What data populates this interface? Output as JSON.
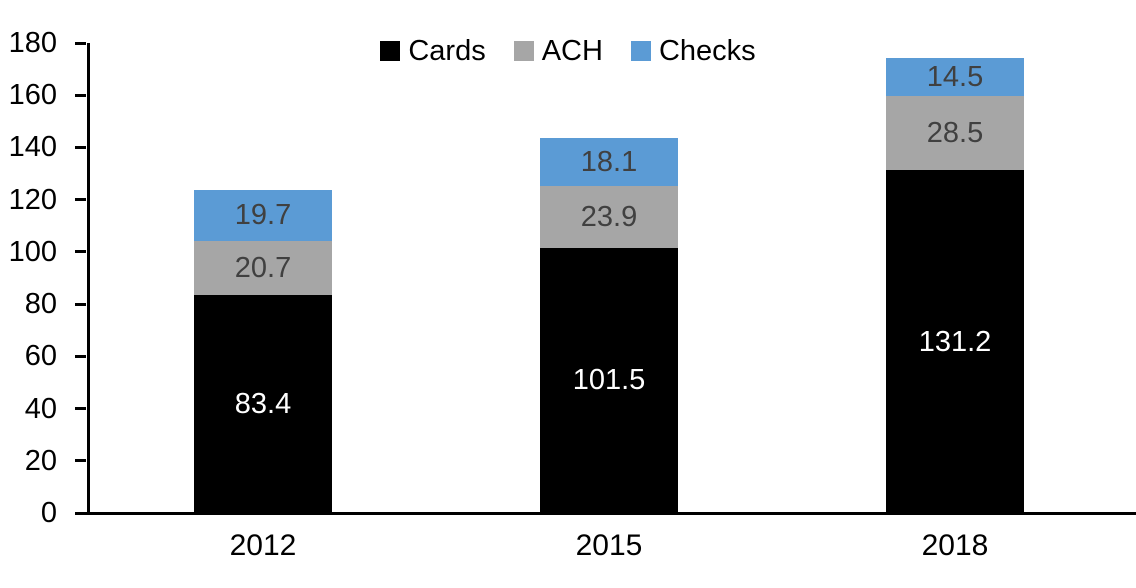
{
  "chart_data": {
    "type": "bar",
    "stacked": true,
    "title": "",
    "xlabel": "",
    "ylabel": "",
    "categories": [
      "2012",
      "2015",
      "2018"
    ],
    "series": [
      {
        "name": "Cards",
        "color": "#000000",
        "label_color": "#FFFFFF",
        "values": [
          83.4,
          101.5,
          131.2
        ]
      },
      {
        "name": "ACH",
        "color": "#A6A6A6",
        "label_color": "#404040",
        "values": [
          20.7,
          23.9,
          28.5
        ]
      },
      {
        "name": "Checks",
        "color": "#5B9BD5",
        "label_color": "#404040",
        "values": [
          19.7,
          18.1,
          14.5
        ]
      }
    ],
    "ylim": [
      0,
      180
    ],
    "yticks": [
      0,
      20,
      40,
      60,
      80,
      100,
      120,
      140,
      160,
      180
    ],
    "grid": false,
    "legend_position": "top-center",
    "axis_color": "#000000",
    "background": "#FFFFFF"
  }
}
